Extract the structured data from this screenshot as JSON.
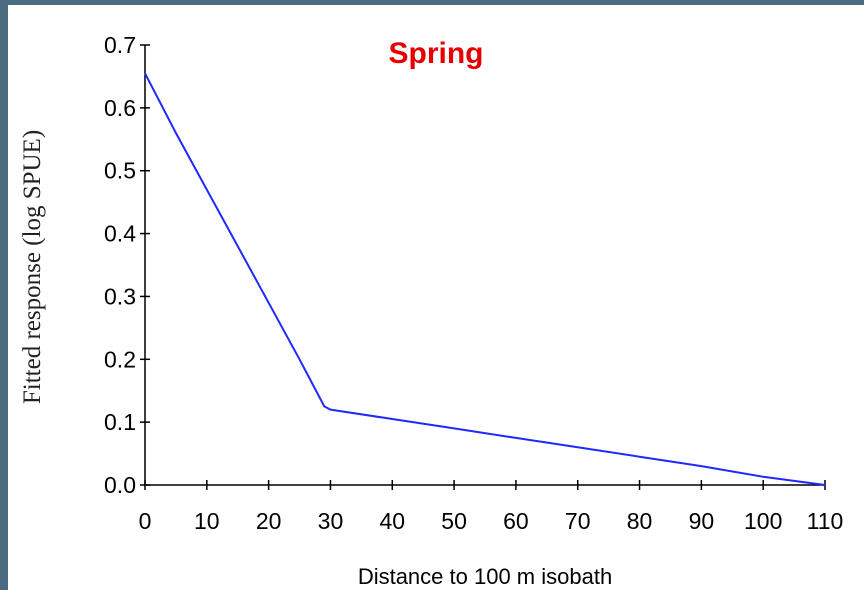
{
  "chart_data": {
    "type": "line",
    "title": "Spring",
    "xlabel": "Distance to 100 m isobath",
    "ylabel": "Fitted response (log SPUE)",
    "xlim": [
      0,
      110
    ],
    "ylim": [
      0,
      0.7
    ],
    "x_ticks": [
      0,
      10,
      20,
      30,
      40,
      50,
      60,
      70,
      80,
      90,
      100,
      110
    ],
    "x_tick_labels": [
      "0",
      "10",
      "20",
      "30",
      "40",
      "50",
      "60",
      "70",
      "80",
      "90",
      "100",
      "110"
    ],
    "y_ticks": [
      0,
      0.1,
      0.2,
      0.3,
      0.4,
      0.5,
      0.6,
      0.7
    ],
    "y_tick_labels": [
      "0.0",
      "0.1",
      "0.2",
      "0.3",
      "0.4",
      "0.5",
      "0.6",
      "0.7"
    ],
    "grid": false,
    "series": [
      {
        "color": "#1f2aff",
        "x": [
          0,
          5,
          10,
          15,
          20,
          25,
          29,
          30,
          40,
          50,
          60,
          70,
          80,
          90,
          100,
          110
        ],
        "y": [
          0.655,
          0.56,
          0.47,
          0.38,
          0.29,
          0.2,
          0.125,
          0.12,
          0.105,
          0.09,
          0.075,
          0.06,
          0.045,
          0.03,
          0.013,
          0.0
        ]
      }
    ],
    "title_color": "#e60000"
  }
}
